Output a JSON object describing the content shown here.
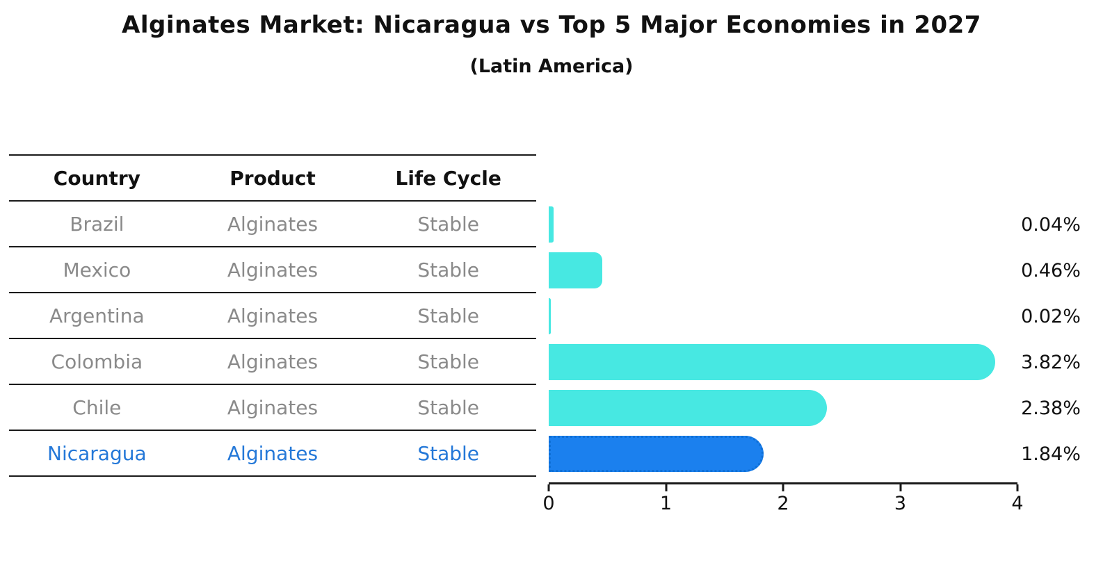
{
  "title": "Alginates Market: Nicaragua vs Top 5 Major Economies in 2027",
  "subtitle": "(Latin America)",
  "table": {
    "headers": [
      "Country",
      "Product",
      "Life Cycle"
    ],
    "rows": [
      {
        "country": "Brazil",
        "product": "Alginates",
        "life_cycle": "Stable",
        "highlighted": false
      },
      {
        "country": "Mexico",
        "product": "Alginates",
        "life_cycle": "Stable",
        "highlighted": false
      },
      {
        "country": "Argentina",
        "product": "Alginates",
        "life_cycle": "Stable",
        "highlighted": false
      },
      {
        "country": "Colombia",
        "product": "Alginates",
        "life_cycle": "Stable",
        "highlighted": false
      },
      {
        "country": "Chile",
        "product": "Alginates",
        "life_cycle": "Stable",
        "highlighted": false
      },
      {
        "country": "Nicaragua",
        "product": "Alginates",
        "life_cycle": "Stable",
        "highlighted": true
      }
    ]
  },
  "chart_data": {
    "type": "bar",
    "orientation": "horizontal",
    "categories": [
      "Brazil",
      "Mexico",
      "Argentina",
      "Colombia",
      "Chile",
      "Nicaragua"
    ],
    "values": [
      0.04,
      0.46,
      0.02,
      3.82,
      2.38,
      1.84
    ],
    "value_labels": [
      "0.04%",
      "0.46%",
      "0.02%",
      "3.82%",
      "2.38%",
      "1.84%"
    ],
    "title": "Alginates Market: Nicaragua vs Top 5 Major Economies in 2027 (Latin America)",
    "xlabel": "",
    "ylabel": "",
    "xlim": [
      0,
      4
    ],
    "xticks": [
      "0",
      "1",
      "2",
      "3",
      "4"
    ],
    "grid": false,
    "legend": false,
    "bar_color": "#47E8E2",
    "highlight_color": "#1B80EE",
    "highlight_edge_color": "#0e6fd6",
    "highlight_index": 5
  },
  "colors": {
    "text_dark": "#111111",
    "table_text_gray": "#8a8a8a",
    "highlight_text_blue": "#2478d8",
    "table_line": "#1a1a1a"
  }
}
